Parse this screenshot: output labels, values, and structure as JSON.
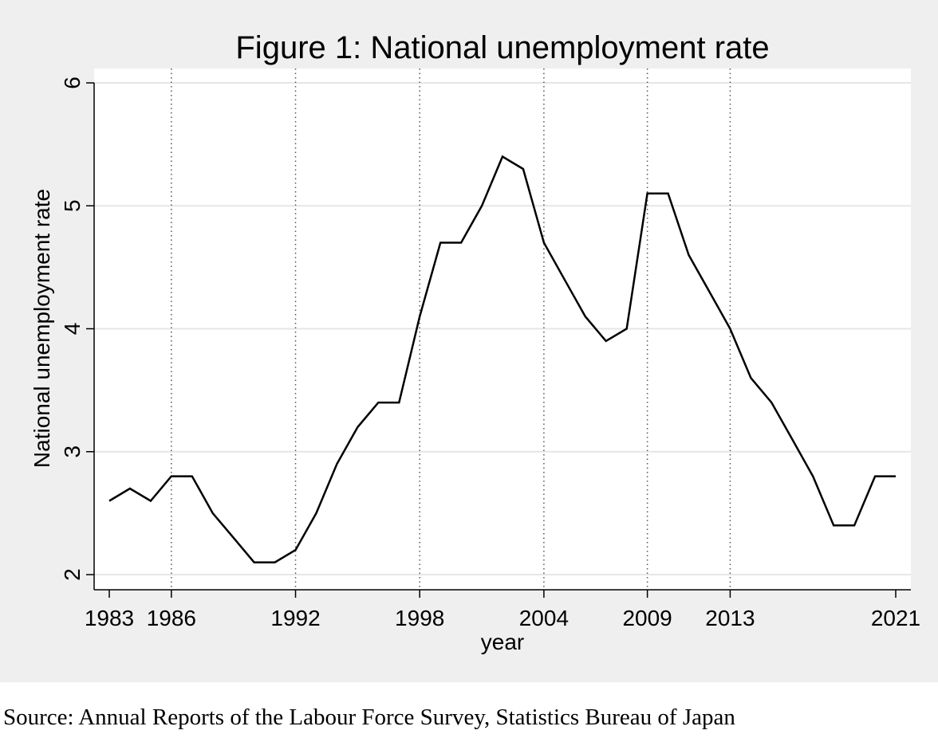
{
  "chart_data": {
    "type": "line",
    "title": "Figure 1: National unemployment rate",
    "xlabel": "year",
    "ylabel": "National unemployment rate",
    "xlim": [
      1983,
      2021
    ],
    "ylim": [
      2,
      6
    ],
    "x_ticks": [
      1983,
      1986,
      1992,
      1998,
      2004,
      2009,
      2013,
      2021
    ],
    "y_ticks": [
      2,
      3,
      4,
      5,
      6
    ],
    "vertical_reference_lines": [
      1986,
      1992,
      1998,
      2004,
      2009,
      2013
    ],
    "grid": "horizontal",
    "series": [
      {
        "x": [
          1983,
          1984,
          1985,
          1986,
          1987,
          1988,
          1989,
          1990,
          1991,
          1992,
          1993,
          1994,
          1995,
          1996,
          1997,
          1998,
          1999,
          2000,
          2001,
          2002,
          2003,
          2004,
          2005,
          2006,
          2007,
          2008,
          2009,
          2010,
          2011,
          2012,
          2013,
          2014,
          2015,
          2016,
          2017,
          2018,
          2019,
          2020,
          2021
        ],
        "values": [
          2.6,
          2.7,
          2.6,
          2.8,
          2.8,
          2.5,
          2.3,
          2.1,
          2.1,
          2.2,
          2.5,
          2.9,
          3.2,
          3.4,
          3.4,
          4.1,
          4.7,
          4.7,
          5.0,
          5.4,
          5.3,
          4.7,
          4.4,
          4.1,
          3.9,
          4.0,
          5.1,
          5.1,
          4.6,
          4.3,
          4.0,
          3.6,
          3.4,
          3.1,
          2.8,
          2.4,
          2.4,
          2.8,
          2.8
        ]
      }
    ]
  },
  "colors": {
    "outer_background": "#efefef",
    "plot_background": "#ffffff",
    "gridline": "#e6e6e6",
    "line": "#000000"
  },
  "source_note": "Source: Annual Reports of the Labour Force Survey, Statistics Bureau of Japan"
}
